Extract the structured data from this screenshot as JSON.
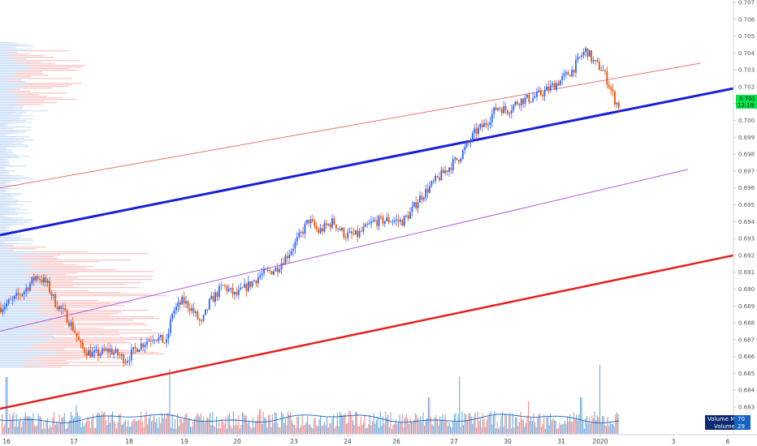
{
  "chart_data": {
    "type": "candlestick",
    "y_axis": {
      "min": 0.682,
      "max": 0.7075,
      "ticks": [
        "0.707",
        "0.706",
        "0.705",
        "0.704",
        "0.703",
        "0.702",
        "0.701",
        "0.700",
        "0.699",
        "0.698",
        "0.697",
        "0.696",
        "0.695",
        "0.694",
        "0.693",
        "0.692",
        "0.691",
        "0.690",
        "0.689",
        "0.688",
        "0.687",
        "0.686",
        "0.685",
        "0.684",
        "0.683"
      ]
    },
    "x_axis": {
      "ticks": [
        "16",
        "17",
        "18",
        "19",
        "20",
        "23",
        "24",
        "26",
        "27",
        "30",
        "31",
        "2020",
        "3",
        "6"
      ]
    },
    "current_price": "0.701",
    "countdown": "12:19",
    "colors": {
      "up": "#2962ff",
      "down": "#e65100",
      "vol_up": "#5b9bd5",
      "vol_down": "#ef7a7a",
      "ma_line": "#1565c0",
      "main_channel": "#1a1fd6",
      "lower_channel": "#e3211f",
      "upper_channel": "#e57373",
      "mid_channel": "#b05ad8",
      "price_tag": "#00e64d",
      "legend_bg": "#0b2a6f"
    },
    "lines": [
      {
        "name": "main-channel-line",
        "x1": 0.0,
        "y1": 0.6932,
        "x2": 1.0,
        "y2": 0.7019
      },
      {
        "name": "lower-channel-line",
        "x1": 0.0,
        "y1": 0.6829,
        "x2": 1.0,
        "y2": 0.692
      },
      {
        "name": "upper-channel-line",
        "x1": 0.0,
        "y1": 0.696,
        "x2": 0.955,
        "y2": 0.7034
      },
      {
        "name": "mid-channel-line",
        "x1": 0.0,
        "y1": 0.6875,
        "x2": 0.938,
        "y2": 0.6971
      }
    ],
    "indicators": {
      "volume_ma_label": "Volume MA",
      "volume_ma_value": "70",
      "volume_label": "Volume",
      "volume_value": "29"
    }
  }
}
